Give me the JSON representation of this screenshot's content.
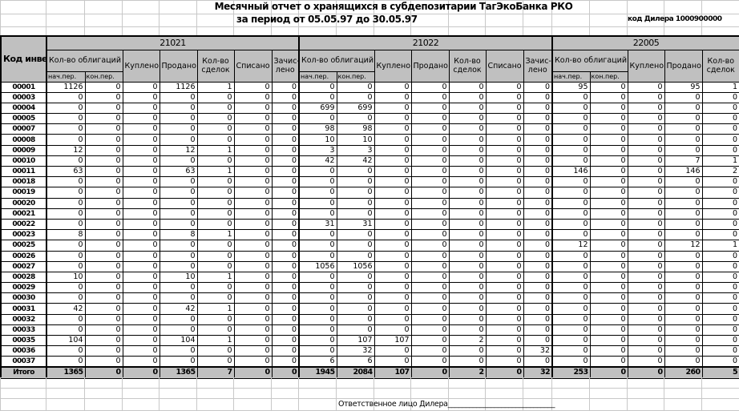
{
  "report": {
    "title": "Месячный отчет о хранящихся в субдепозитарии ТагЭкоБанка РКО",
    "period": "за период от 05.05.97 до 30.05.97",
    "dealer_code": "код Дилера 1000900000",
    "footer": "Ответственное лицо Дилера______________________________"
  },
  "header": {
    "investor_code": "Код инвестора",
    "groups": [
      "21021",
      "21022",
      "22005"
    ],
    "bond_count": "Кол-во облигаций",
    "start_period": "нач.пер.",
    "end_period": "кон.пер.",
    "bought": "Куплено",
    "sold": "Продано",
    "deals": "Кол-во сделок",
    "written_off": "Списано",
    "credited": "Зачис-лено"
  },
  "rows": [
    {
      "code": "00001",
      "values": [
        1126,
        0,
        0,
        1126,
        1,
        0,
        0,
        0,
        0,
        0,
        0,
        0,
        0,
        0,
        95,
        0,
        0,
        95,
        1
      ]
    },
    {
      "code": "00003",
      "values": [
        0,
        0,
        0,
        0,
        0,
        0,
        0,
        0,
        0,
        0,
        0,
        0,
        0,
        0,
        0,
        0,
        0,
        0,
        0
      ]
    },
    {
      "code": "00004",
      "values": [
        0,
        0,
        0,
        0,
        0,
        0,
        0,
        699,
        699,
        0,
        0,
        0,
        0,
        0,
        0,
        0,
        0,
        0,
        0
      ]
    },
    {
      "code": "00005",
      "values": [
        0,
        0,
        0,
        0,
        0,
        0,
        0,
        0,
        0,
        0,
        0,
        0,
        0,
        0,
        0,
        0,
        0,
        0,
        0
      ]
    },
    {
      "code": "00007",
      "values": [
        0,
        0,
        0,
        0,
        0,
        0,
        0,
        98,
        98,
        0,
        0,
        0,
        0,
        0,
        0,
        0,
        0,
        0,
        0
      ]
    },
    {
      "code": "00008",
      "values": [
        0,
        0,
        0,
        0,
        0,
        0,
        0,
        10,
        10,
        0,
        0,
        0,
        0,
        0,
        0,
        0,
        0,
        0,
        0
      ]
    },
    {
      "code": "00009",
      "values": [
        12,
        0,
        0,
        12,
        1,
        0,
        0,
        3,
        3,
        0,
        0,
        0,
        0,
        0,
        0,
        0,
        0,
        0,
        0
      ]
    },
    {
      "code": "00010",
      "values": [
        0,
        0,
        0,
        0,
        0,
        0,
        0,
        42,
        42,
        0,
        0,
        0,
        0,
        0,
        0,
        0,
        0,
        7,
        1
      ]
    },
    {
      "code": "00011",
      "values": [
        63,
        0,
        0,
        63,
        1,
        0,
        0,
        0,
        0,
        0,
        0,
        0,
        0,
        0,
        146,
        0,
        0,
        146,
        2
      ]
    },
    {
      "code": "00018",
      "values": [
        0,
        0,
        0,
        0,
        0,
        0,
        0,
        0,
        0,
        0,
        0,
        0,
        0,
        0,
        0,
        0,
        0,
        0,
        0
      ]
    },
    {
      "code": "00019",
      "values": [
        0,
        0,
        0,
        0,
        0,
        0,
        0,
        0,
        0,
        0,
        0,
        0,
        0,
        0,
        0,
        0,
        0,
        0,
        0
      ]
    },
    {
      "code": "00020",
      "values": [
        0,
        0,
        0,
        0,
        0,
        0,
        0,
        0,
        0,
        0,
        0,
        0,
        0,
        0,
        0,
        0,
        0,
        0,
        0
      ]
    },
    {
      "code": "00021",
      "values": [
        0,
        0,
        0,
        0,
        0,
        0,
        0,
        0,
        0,
        0,
        0,
        0,
        0,
        0,
        0,
        0,
        0,
        0,
        0
      ]
    },
    {
      "code": "00022",
      "values": [
        0,
        0,
        0,
        0,
        0,
        0,
        0,
        31,
        31,
        0,
        0,
        0,
        0,
        0,
        0,
        0,
        0,
        0,
        0
      ]
    },
    {
      "code": "00023",
      "values": [
        8,
        0,
        0,
        8,
        1,
        0,
        0,
        0,
        0,
        0,
        0,
        0,
        0,
        0,
        0,
        0,
        0,
        0,
        0
      ]
    },
    {
      "code": "00025",
      "values": [
        0,
        0,
        0,
        0,
        0,
        0,
        0,
        0,
        0,
        0,
        0,
        0,
        0,
        0,
        12,
        0,
        0,
        12,
        1
      ]
    },
    {
      "code": "00026",
      "values": [
        0,
        0,
        0,
        0,
        0,
        0,
        0,
        0,
        0,
        0,
        0,
        0,
        0,
        0,
        0,
        0,
        0,
        0,
        0
      ]
    },
    {
      "code": "00027",
      "values": [
        0,
        0,
        0,
        0,
        0,
        0,
        0,
        1056,
        1056,
        0,
        0,
        0,
        0,
        0,
        0,
        0,
        0,
        0,
        0
      ]
    },
    {
      "code": "00028",
      "values": [
        10,
        0,
        0,
        10,
        1,
        0,
        0,
        0,
        0,
        0,
        0,
        0,
        0,
        0,
        0,
        0,
        0,
        0,
        0
      ]
    },
    {
      "code": "00029",
      "values": [
        0,
        0,
        0,
        0,
        0,
        0,
        0,
        0,
        0,
        0,
        0,
        0,
        0,
        0,
        0,
        0,
        0,
        0,
        0
      ]
    },
    {
      "code": "00030",
      "values": [
        0,
        0,
        0,
        0,
        0,
        0,
        0,
        0,
        0,
        0,
        0,
        0,
        0,
        0,
        0,
        0,
        0,
        0,
        0
      ]
    },
    {
      "code": "00031",
      "values": [
        42,
        0,
        0,
        42,
        1,
        0,
        0,
        0,
        0,
        0,
        0,
        0,
        0,
        0,
        0,
        0,
        0,
        0,
        0
      ]
    },
    {
      "code": "00032",
      "values": [
        0,
        0,
        0,
        0,
        0,
        0,
        0,
        0,
        0,
        0,
        0,
        0,
        0,
        0,
        0,
        0,
        0,
        0,
        0
      ]
    },
    {
      "code": "00033",
      "values": [
        0,
        0,
        0,
        0,
        0,
        0,
        0,
        0,
        0,
        0,
        0,
        0,
        0,
        0,
        0,
        0,
        0,
        0,
        0
      ]
    },
    {
      "code": "00035",
      "values": [
        104,
        0,
        0,
        104,
        1,
        0,
        0,
        0,
        107,
        107,
        0,
        2,
        0,
        0,
        0,
        0,
        0,
        0,
        0
      ]
    },
    {
      "code": "00036",
      "values": [
        0,
        0,
        0,
        0,
        0,
        0,
        0,
        0,
        32,
        0,
        0,
        0,
        0,
        32,
        0,
        0,
        0,
        0,
        0
      ]
    },
    {
      "code": "00037",
      "values": [
        0,
        0,
        0,
        0,
        0,
        0,
        0,
        6,
        6,
        0,
        0,
        0,
        0,
        0,
        0,
        0,
        0,
        0,
        0
      ]
    }
  ],
  "total": {
    "code": "Итого",
    "values": [
      1365,
      0,
      0,
      1365,
      7,
      0,
      0,
      1945,
      2084,
      107,
      0,
      2,
      0,
      32,
      253,
      0,
      0,
      260,
      5
    ]
  }
}
